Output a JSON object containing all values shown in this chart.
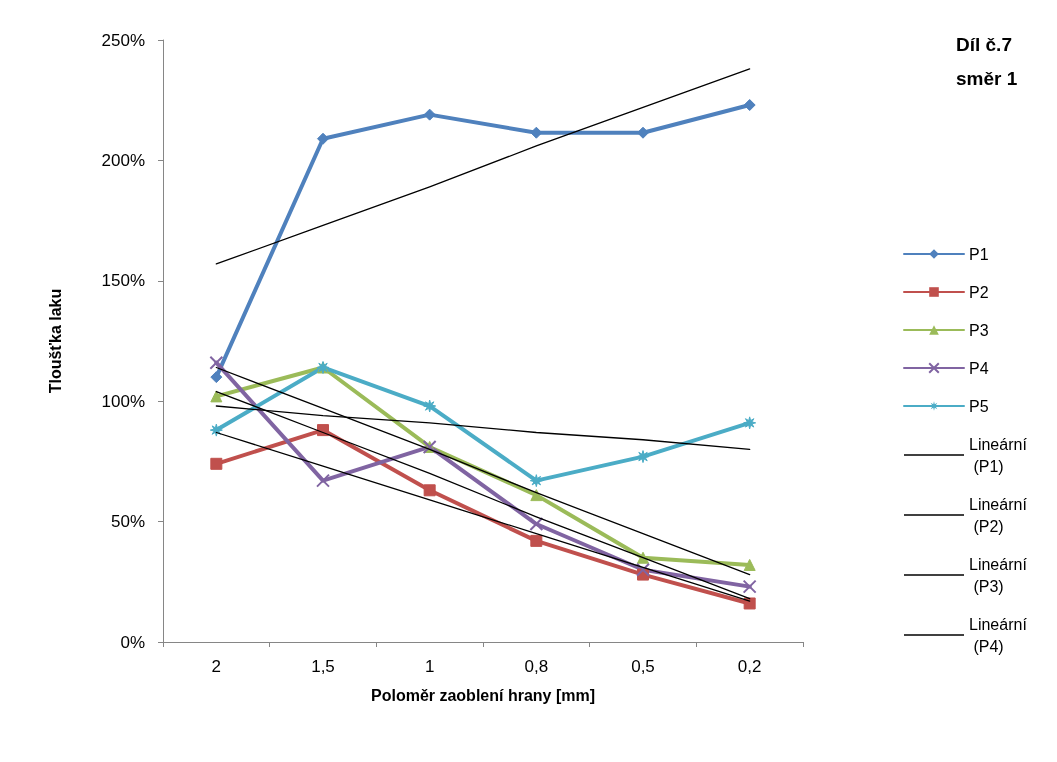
{
  "chart_data": {
    "type": "line",
    "title": "Díl č.7 směr 1",
    "xlabel": "Poloměr zaoblení hrany [mm]",
    "ylabel": "Tloušťka laku",
    "categories": [
      "2",
      "1,5",
      "1",
      "0,8",
      "0,5",
      "0,2"
    ],
    "ylim": [
      0,
      250
    ],
    "yticks": [
      {
        "value": 0,
        "label": "0%"
      },
      {
        "value": 50,
        "label": "50%"
      },
      {
        "value": 100,
        "label": "100%"
      },
      {
        "value": 150,
        "label": "150%"
      },
      {
        "value": 200,
        "label": "200%"
      },
      {
        "value": 250,
        "label": "250%"
      }
    ],
    "grid": false,
    "legend": "right",
    "line_style": "solid",
    "series": [
      {
        "name": "P1",
        "color": "#4f81bd",
        "marker": "diamond",
        "values": [
          110,
          209,
          219,
          211.5,
          211.5,
          223
        ]
      },
      {
        "name": "P2",
        "color": "#c0504d",
        "marker": "square",
        "values": [
          74,
          88,
          63,
          42,
          28,
          16
        ]
      },
      {
        "name": "P3",
        "color": "#9bbb59",
        "marker": "triangle",
        "values": [
          102,
          114,
          81,
          61,
          35,
          32
        ]
      },
      {
        "name": "P4",
        "color": "#8064a2",
        "marker": "cross",
        "values": [
          116,
          67,
          81,
          49,
          30,
          23
        ]
      },
      {
        "name": "P5",
        "color": "#4bacc6",
        "marker": "star",
        "values": [
          88,
          114,
          98,
          67,
          77,
          91
        ]
      },
      {
        "name": "Lineární (P1)",
        "color": "#000000",
        "marker": "none",
        "values": [
          157,
          173,
          189,
          206,
          222,
          238
        ]
      },
      {
        "name": "Lineární (P2)",
        "color": "#000000",
        "marker": "none",
        "values": [
          87,
          73,
          59,
          45,
          31,
          17
        ]
      },
      {
        "name": "Lineární (P3)",
        "color": "#000000",
        "marker": "none",
        "values": [
          114,
          97,
          80,
          62,
          45,
          28
        ]
      },
      {
        "name": "Lineární (P4)",
        "color": "#000000",
        "marker": "none",
        "values": [
          104,
          87,
          70,
          52,
          35,
          18
        ]
      },
      {
        "color": "#000000",
        "marker": "none",
        "values": [
          98,
          94,
          91,
          87,
          84,
          80
        ]
      }
    ]
  }
}
